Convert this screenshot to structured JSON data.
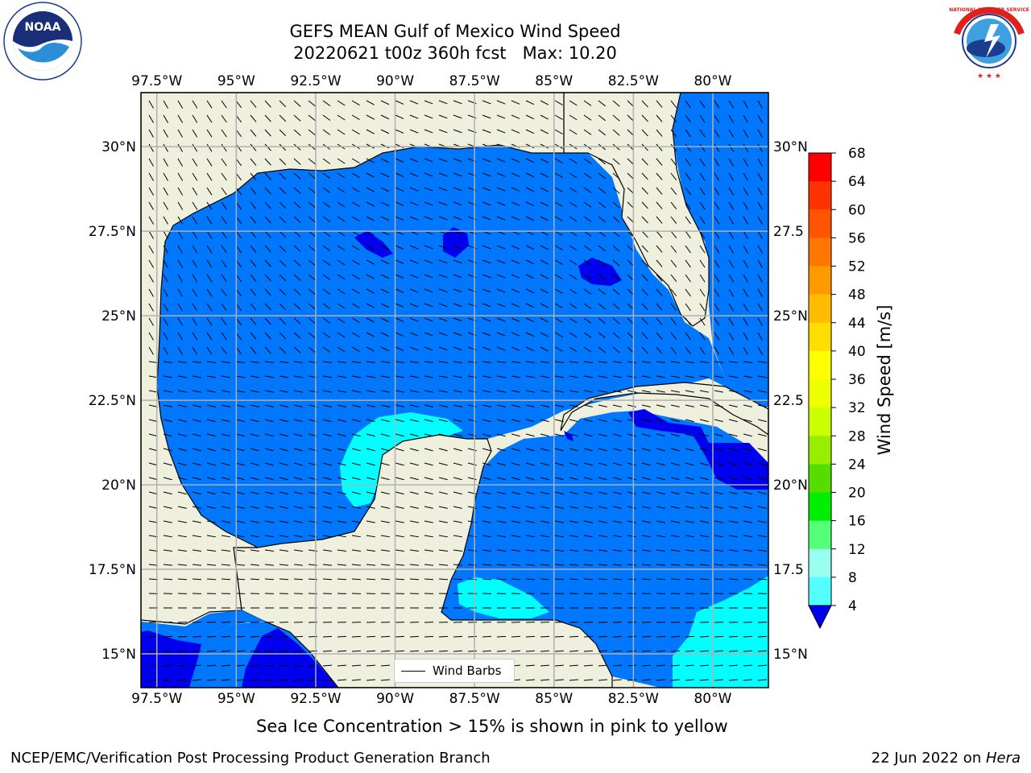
{
  "title": {
    "line1": "GEFS MEAN Gulf of Mexico Wind Speed",
    "line2": "20220621 t00z 360h fcst   Max: 10.20"
  },
  "map": {
    "lon_labels": [
      "97.5°W",
      "95°W",
      "92.5°W",
      "90°W",
      "87.5°W",
      "85°W",
      "82.5°W",
      "80°W"
    ],
    "lat_labels": [
      "30°N",
      "27.5°N",
      "25°N",
      "22.5°N",
      "20°N",
      "17.5°N",
      "15°N"
    ],
    "lat_labels_right": [
      "30°N",
      "27.5",
      "25°N",
      "22.5",
      "20°N",
      "17.5",
      "15°N"
    ],
    "lon_range": [
      -98,
      -78.25
    ],
    "lat_range": [
      14,
      31.6
    ],
    "land_color": "#efefde",
    "gridlines": true
  },
  "legend": {
    "label": "Wind Barbs"
  },
  "colorbar": {
    "label": "Wind Speed [m/s]",
    "ticks": [
      "68",
      "64",
      "60",
      "56",
      "52",
      "48",
      "44",
      "40",
      "36",
      "32",
      "28",
      "24",
      "20",
      "16",
      "12",
      "8",
      "4"
    ],
    "colors": [
      "#ff0000",
      "#ff3300",
      "#ff5500",
      "#ff7700",
      "#ff9900",
      "#ffbb00",
      "#ffdd00",
      "#ffff00",
      "#eeff00",
      "#ccff00",
      "#99ee00",
      "#55dd00",
      "#00ee00",
      "#55ff77",
      "#99ffee",
      "#55ffff",
      "#00ffff",
      "#0077ff"
    ],
    "under_color": "#0000ee"
  },
  "note": "Sea Ice Concentration > 15% is shown in pink to yellow",
  "footer": {
    "left": "NCEP/EMC/Verification Post Processing Product Generation Branch",
    "right_date": "22 Jun 2022 on ",
    "right_host": "Hera"
  },
  "logos": {
    "left": {
      "name": "noaa-logo",
      "text": "NOAA"
    },
    "right": {
      "name": "nws-logo",
      "text": "NATIONAL WEATHER SERVICE"
    }
  }
}
